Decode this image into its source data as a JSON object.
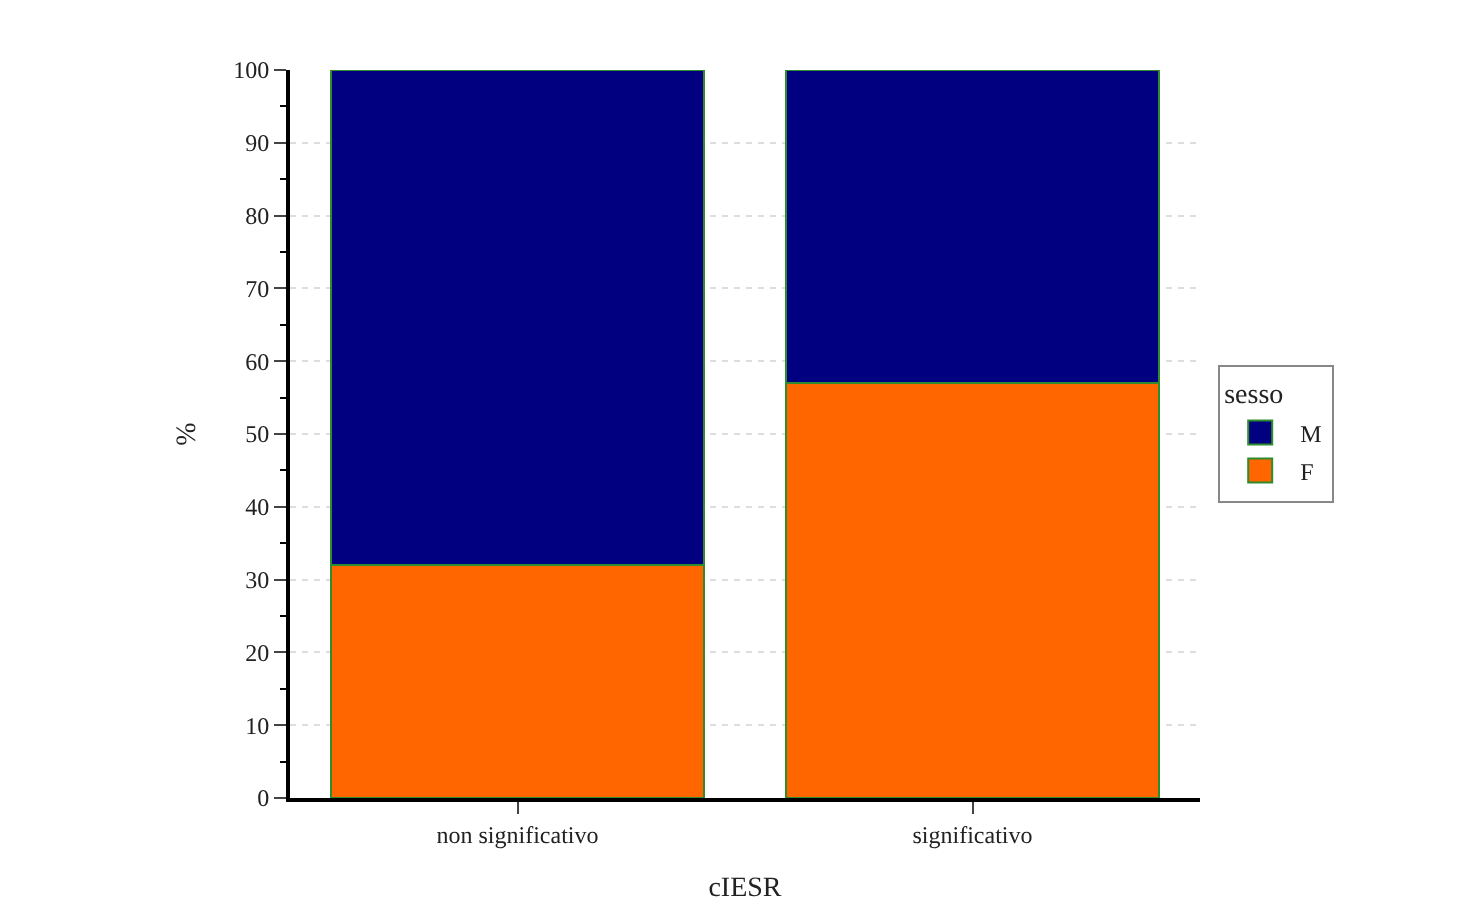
{
  "chart_data": {
    "type": "bar",
    "stacked": true,
    "xlabel": "cIESR",
    "ylabel": "%",
    "legend_title": "sesso",
    "categories": [
      "non significativo",
      "significativo"
    ],
    "series": [
      {
        "name": "F",
        "color": "#ff6600",
        "values": [
          32,
          57
        ]
      },
      {
        "name": "M",
        "color": "#000080",
        "values": [
          68,
          43
        ]
      }
    ],
    "ylim": [
      0,
      100
    ],
    "yticks": [
      0,
      10,
      20,
      30,
      40,
      50,
      60,
      70,
      80,
      90,
      100
    ],
    "grid": "y",
    "legend": "right"
  }
}
